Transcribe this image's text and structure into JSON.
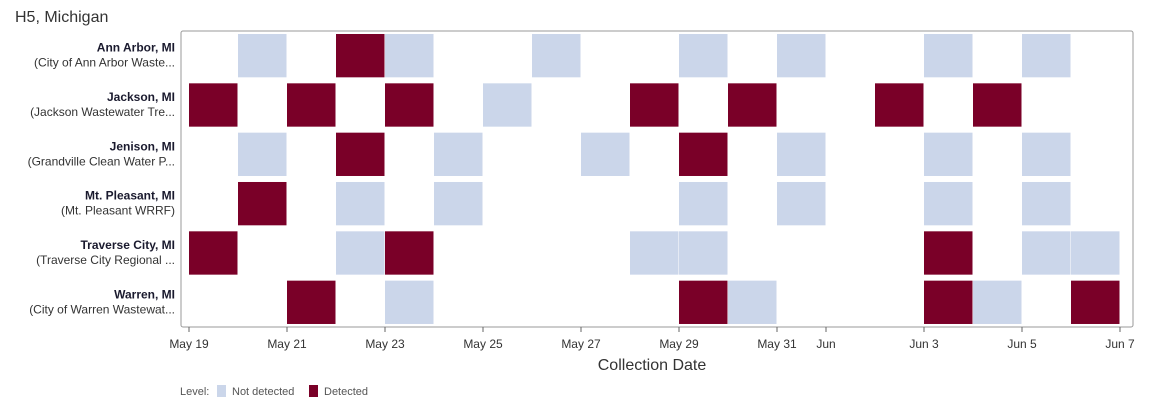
{
  "title": "H5, Michigan",
  "chart_data": {
    "type": "heatmap",
    "title": "H5, Michigan",
    "xlabel": "Collection Date",
    "ylabel": "",
    "x_ticks": [
      {
        "date": "2024-05-19",
        "label": "May 19"
      },
      {
        "date": "2024-05-21",
        "label": "May 21"
      },
      {
        "date": "2024-05-23",
        "label": "May 23"
      },
      {
        "date": "2024-05-25",
        "label": "May 25"
      },
      {
        "date": "2024-05-27",
        "label": "May 27"
      },
      {
        "date": "2024-05-29",
        "label": "May 29"
      },
      {
        "date": "2024-05-31",
        "label": "May 31"
      },
      {
        "date": "2024-06-01",
        "label": "Jun"
      },
      {
        "date": "2024-06-03",
        "label": "Jun 3"
      },
      {
        "date": "2024-06-05",
        "label": "Jun 5"
      },
      {
        "date": "2024-06-07",
        "label": "Jun 7"
      }
    ],
    "xlim": [
      "2024-05-18",
      "2024-06-07"
    ],
    "levels": [
      {
        "key": "nd",
        "label": "Not detected",
        "color": "#cbd6ea"
      },
      {
        "key": "d",
        "label": "Detected",
        "color": "#7a0028"
      }
    ],
    "legend_title": "Level:",
    "legend_position": "bottom-left",
    "sites": [
      {
        "name": "Ann Arbor, MI",
        "facility": "(City of Ann Arbor Waste...",
        "samples": [
          {
            "date": "2024-05-20",
            "level": "nd"
          },
          {
            "date": "2024-05-22",
            "level": "d"
          },
          {
            "date": "2024-05-23",
            "level": "nd"
          },
          {
            "date": "2024-05-26",
            "level": "nd"
          },
          {
            "date": "2024-05-29",
            "level": "nd"
          },
          {
            "date": "2024-05-31",
            "level": "nd"
          },
          {
            "date": "2024-06-03",
            "level": "nd"
          },
          {
            "date": "2024-06-05",
            "level": "nd"
          }
        ]
      },
      {
        "name": "Jackson, MI",
        "facility": "(Jackson Wastewater Tre...",
        "samples": [
          {
            "date": "2024-05-19",
            "level": "d"
          },
          {
            "date": "2024-05-21",
            "level": "d"
          },
          {
            "date": "2024-05-23",
            "level": "d"
          },
          {
            "date": "2024-05-25",
            "level": "nd"
          },
          {
            "date": "2024-05-28",
            "level": "d"
          },
          {
            "date": "2024-05-30",
            "level": "d"
          },
          {
            "date": "2024-06-02",
            "level": "d"
          },
          {
            "date": "2024-06-04",
            "level": "d"
          }
        ]
      },
      {
        "name": "Jenison, MI",
        "facility": "(Grandville Clean Water P...",
        "samples": [
          {
            "date": "2024-05-20",
            "level": "nd"
          },
          {
            "date": "2024-05-22",
            "level": "d"
          },
          {
            "date": "2024-05-24",
            "level": "nd"
          },
          {
            "date": "2024-05-27",
            "level": "nd"
          },
          {
            "date": "2024-05-29",
            "level": "d"
          },
          {
            "date": "2024-05-31",
            "level": "nd"
          },
          {
            "date": "2024-06-03",
            "level": "nd"
          },
          {
            "date": "2024-06-05",
            "level": "nd"
          }
        ]
      },
      {
        "name": "Mt. Pleasant, MI",
        "facility": "(Mt. Pleasant WRRF)",
        "samples": [
          {
            "date": "2024-05-20",
            "level": "d"
          },
          {
            "date": "2024-05-22",
            "level": "nd"
          },
          {
            "date": "2024-05-24",
            "level": "nd"
          },
          {
            "date": "2024-05-29",
            "level": "nd"
          },
          {
            "date": "2024-05-31",
            "level": "nd"
          },
          {
            "date": "2024-06-03",
            "level": "nd"
          },
          {
            "date": "2024-06-05",
            "level": "nd"
          }
        ]
      },
      {
        "name": "Traverse City, MI",
        "facility": "(Traverse City Regional ...",
        "samples": [
          {
            "date": "2024-05-19",
            "level": "d"
          },
          {
            "date": "2024-05-22",
            "level": "nd"
          },
          {
            "date": "2024-05-23",
            "level": "d"
          },
          {
            "date": "2024-05-28",
            "level": "nd"
          },
          {
            "date": "2024-05-29",
            "level": "nd"
          },
          {
            "date": "2024-06-03",
            "level": "d"
          },
          {
            "date": "2024-06-05",
            "level": "nd"
          },
          {
            "date": "2024-06-06",
            "level": "nd"
          }
        ]
      },
      {
        "name": "Warren, MI",
        "facility": "(City of Warren Wastewat...",
        "samples": [
          {
            "date": "2024-05-21",
            "level": "d"
          },
          {
            "date": "2024-05-23",
            "level": "nd"
          },
          {
            "date": "2024-05-29",
            "level": "d"
          },
          {
            "date": "2024-05-30",
            "level": "nd"
          },
          {
            "date": "2024-06-03",
            "level": "d"
          },
          {
            "date": "2024-06-04",
            "level": "nd"
          },
          {
            "date": "2024-06-06",
            "level": "d"
          }
        ]
      }
    ]
  }
}
